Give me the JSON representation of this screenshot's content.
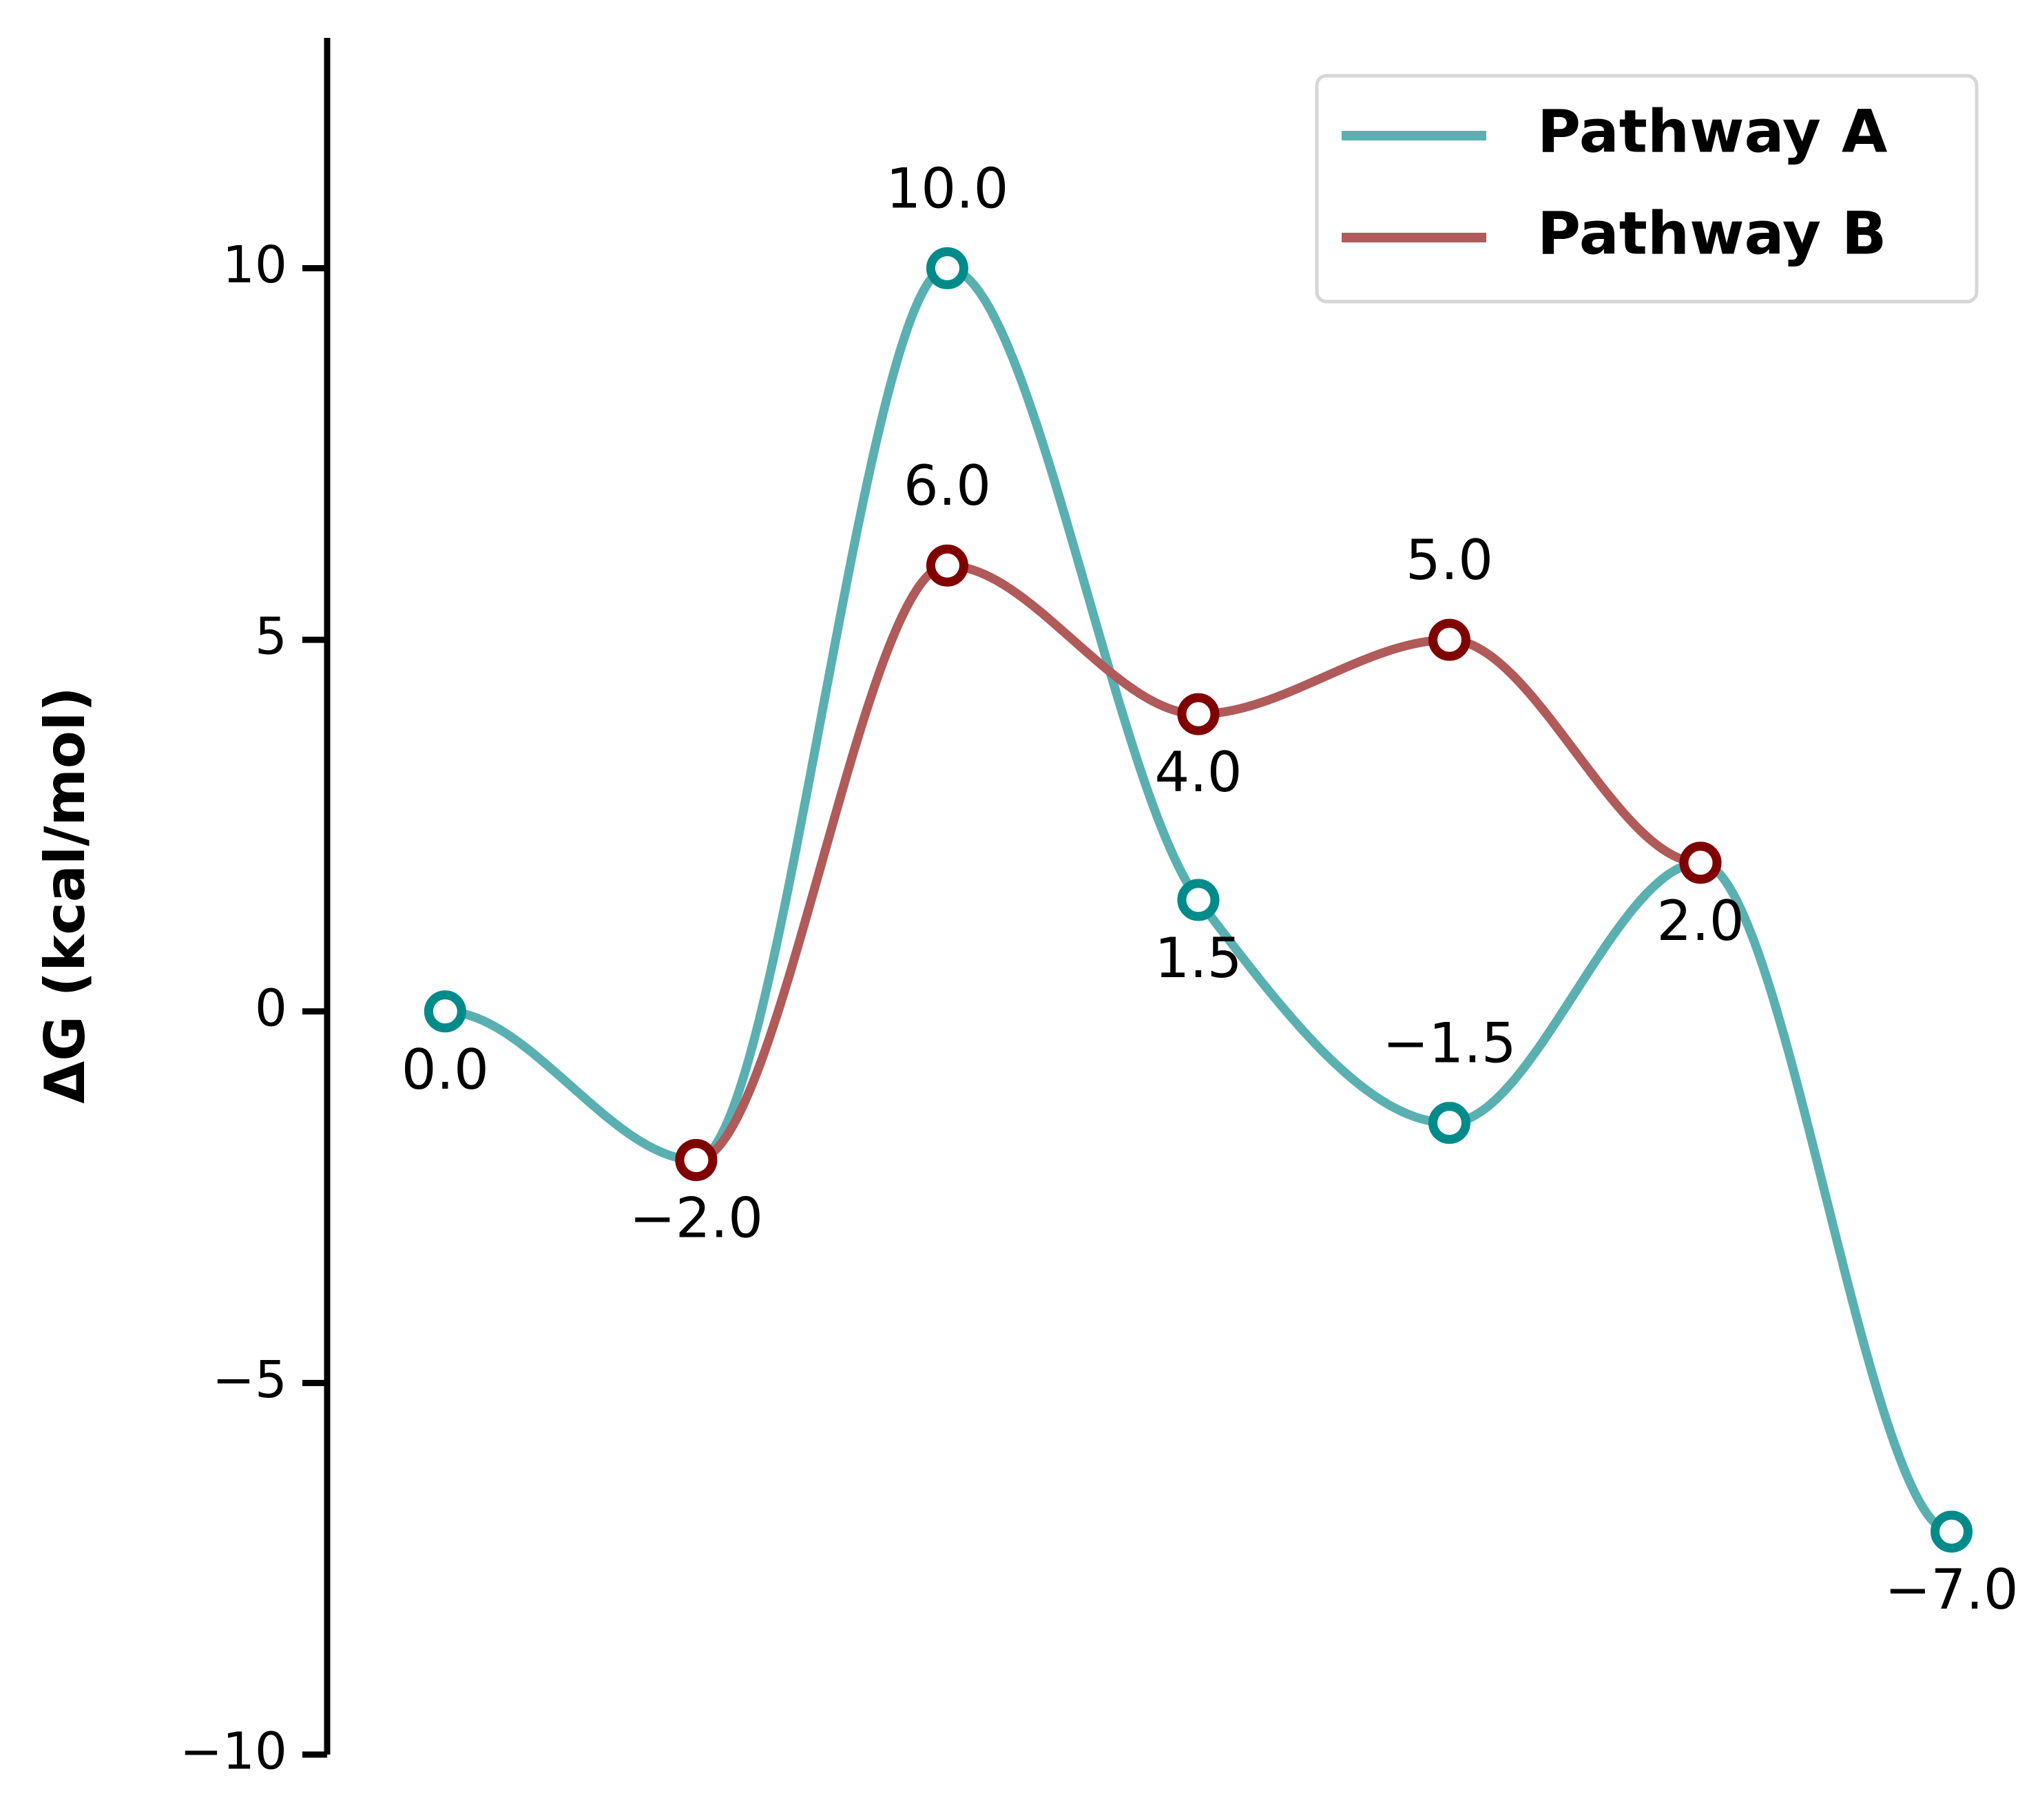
{
  "chart_data": {
    "type": "line",
    "ylabel": "ΔG (kcal/mol)",
    "ylim": [
      -10,
      13.1
    ],
    "xlim": [
      -0.47,
      6.1
    ],
    "yticks": [
      10,
      5,
      0,
      -5,
      -10
    ],
    "ytick_labels": [
      "10",
      "5",
      "0",
      "−5",
      "−10"
    ],
    "grid": false,
    "legend_position": "top-right",
    "series": [
      {
        "name": "Pathway A",
        "color": "#5ab0b0",
        "marker_color": "#008b8b",
        "x": [
          0,
          1,
          2,
          3,
          4,
          5,
          6
        ],
        "y": [
          0.0,
          -2.0,
          10.0,
          1.5,
          -1.5,
          2.0,
          -7.0
        ],
        "labels": [
          "0.0",
          "−2.0",
          "10.0",
          "1.5",
          "−1.5",
          "2.0",
          "−7.0"
        ],
        "label_pos": [
          "below",
          "below",
          "above",
          "below",
          "above",
          "below",
          "below"
        ]
      },
      {
        "name": "Pathway B",
        "color": "#b05a5a",
        "marker_color": "#800000",
        "x": [
          1,
          2,
          3,
          4,
          5
        ],
        "y": [
          -2.0,
          6.0,
          4.0,
          5.0,
          2.0
        ],
        "labels": [
          "",
          "6.0",
          "4.0",
          "5.0",
          ""
        ],
        "label_pos": [
          "none",
          "above",
          "below",
          "above",
          "none"
        ]
      }
    ]
  }
}
